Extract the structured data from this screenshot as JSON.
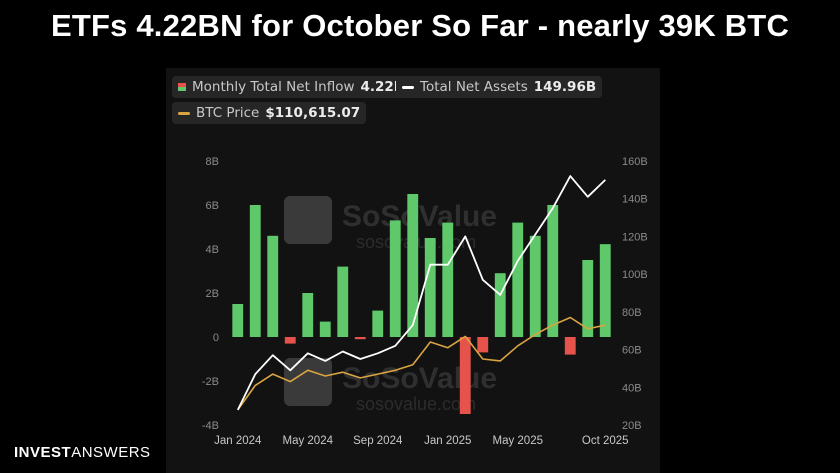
{
  "headline": "ETFs 4.22BN for October So Far - nearly 39K BTC",
  "brand": {
    "part1": "INVEST",
    "part2": "ANSWERS"
  },
  "legend": {
    "inflow_label": "Monthly Total Net Inflow",
    "inflow_value": "4.22B",
    "assets_label": "Total Net Assets",
    "assets_value": "149.96B",
    "btc_label": "BTC Price",
    "btc_value": "$110,615.07"
  },
  "colors": {
    "positive_bar": "#5ec86a",
    "negative_bar": "#e5534b",
    "assets_line": "#ffffff",
    "btc_line": "#d9a441",
    "axis_text": "#8a8a8a"
  },
  "watermark": {
    "logo_text": "SoSoValue",
    "url_text": "sosovalue.com"
  },
  "chart_data": {
    "type": "bar",
    "categories": [
      "Jan 2024",
      "Feb 2024",
      "Mar 2024",
      "Apr 2024",
      "May 2024",
      "Jun 2024",
      "Jul 2024",
      "Aug 2024",
      "Sep 2024",
      "Oct 2024",
      "Nov 2024",
      "Dec 2024",
      "Jan 2025",
      "Feb 2025",
      "Mar 2025",
      "Apr 2025",
      "May 2025",
      "Jun 2025",
      "Jul 2025",
      "Aug 2025",
      "Sep 2025",
      "Oct 2025"
    ],
    "x_tick_labels": [
      "Jan 2024",
      "May 2024",
      "Sep 2024",
      "Jan 2025",
      "May 2025",
      "Oct 2025"
    ],
    "y_left_ticks": [
      "8B",
      "6B",
      "4B",
      "2B",
      "0",
      "-2B",
      "-4B"
    ],
    "y_right_ticks": [
      "160B",
      "140B",
      "120B",
      "100B",
      "80B",
      "60B",
      "40B",
      "20B"
    ],
    "ylim_left": [
      -4,
      8
    ],
    "ylim_right": [
      20,
      160
    ],
    "series": [
      {
        "name": "Monthly Total Net Inflow",
        "axis": "left",
        "unit": "B",
        "values": [
          1.5,
          6.0,
          4.6,
          -0.3,
          2.0,
          0.7,
          3.2,
          -0.1,
          1.2,
          5.3,
          6.5,
          4.5,
          5.2,
          -3.5,
          -0.7,
          2.9,
          5.2,
          4.6,
          6.0,
          -0.8,
          3.5,
          4.22
        ]
      },
      {
        "name": "Total Net Assets",
        "axis": "right",
        "unit": "B",
        "values": [
          28,
          47,
          57,
          49,
          58,
          54,
          59,
          55,
          58,
          62,
          73,
          105,
          105,
          120,
          97,
          89,
          107,
          121,
          135,
          152,
          141,
          150
        ]
      },
      {
        "name": "BTC Price",
        "axis": "right",
        "values": [
          28,
          41,
          47,
          43,
          49,
          46,
          48,
          45,
          47,
          49,
          52,
          64,
          61,
          67,
          55,
          54,
          62,
          68,
          73,
          77,
          71,
          73
        ]
      }
    ]
  }
}
